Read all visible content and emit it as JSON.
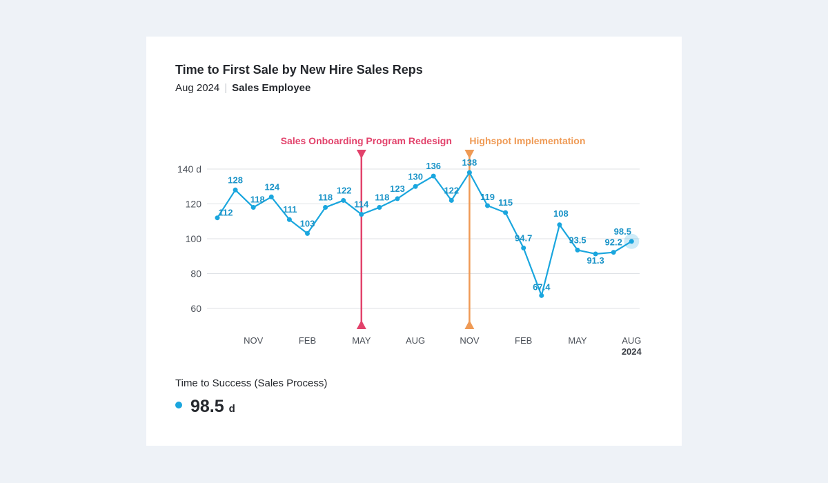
{
  "card": {
    "title": "Time to First Sale by New Hire Sales Reps",
    "subtitle_date": "Aug 2024",
    "subtitle_filter": "Sales Employee"
  },
  "metric": {
    "label": "Time to Success (Sales Process)",
    "value": "98.5",
    "unit": "d"
  },
  "colors": {
    "series": "#1aa6de",
    "series_label": "#1b94c8",
    "event_onboarding": "#e2426b",
    "event_highspot": "#ef9a55",
    "grid": "#dfe2e6",
    "axis_text": "#4a4f57"
  },
  "chart_data": {
    "type": "line",
    "title": "Time to First Sale by New Hire Sales Reps",
    "ylabel": "d",
    "ylim": [
      50,
      140
    ],
    "y_ticks": [
      {
        "value": 140,
        "label": "140 d"
      },
      {
        "value": 120,
        "label": "120"
      },
      {
        "value": 100,
        "label": "100"
      },
      {
        "value": 80,
        "label": "80"
      },
      {
        "value": 60,
        "label": "60"
      }
    ],
    "x_ticks": [
      {
        "index": 2,
        "label": "NOV"
      },
      {
        "index": 5,
        "label": "FEB"
      },
      {
        "index": 8,
        "label": "MAY"
      },
      {
        "index": 11,
        "label": "AUG"
      },
      {
        "index": 14,
        "label": "NOV"
      },
      {
        "index": 17,
        "label": "FEB"
      },
      {
        "index": 20,
        "label": "MAY"
      },
      {
        "index": 23,
        "label": "AUG",
        "sublabel": "2024"
      }
    ],
    "series": [
      {
        "name": "Time to Success (Sales Process)",
        "values": [
          112,
          128,
          118,
          124,
          111,
          103,
          118,
          122,
          114,
          118,
          123,
          130,
          136,
          122,
          138,
          119,
          115,
          94.7,
          67.4,
          108,
          93.5,
          91.3,
          92.2,
          98.5
        ],
        "labels": [
          "112",
          "128",
          "118",
          "124",
          "111",
          "103",
          "118",
          "122",
          "114",
          "118",
          "123",
          "130",
          "136",
          "122",
          "138",
          "119",
          "115",
          "94.7",
          "67.4",
          "108",
          "93.5",
          "91.3",
          "92.2",
          "98.5"
        ]
      }
    ],
    "annotations": [
      {
        "index": 8,
        "label": "Sales Onboarding Program Redesign",
        "color": "#e2426b"
      },
      {
        "index": 14,
        "label": "Highspot Implementation",
        "color": "#ef9a55"
      }
    ]
  }
}
